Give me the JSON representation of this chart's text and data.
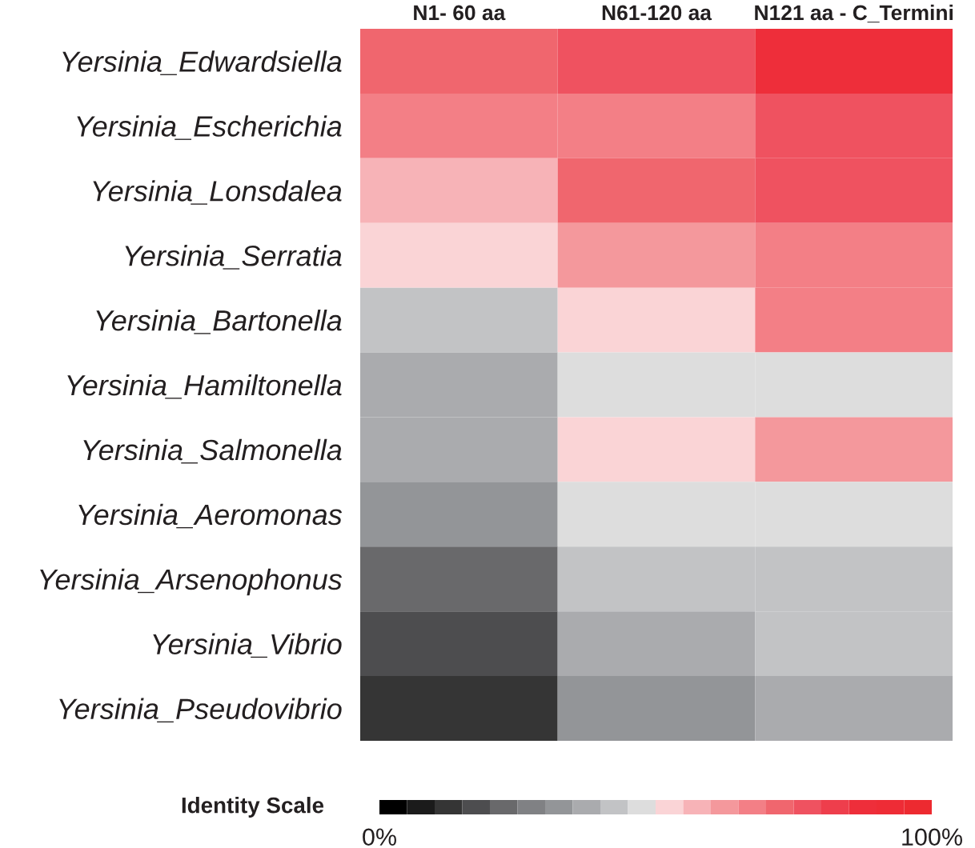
{
  "chart_data": {
    "type": "heatmap",
    "categories": [
      "N1- 60 aa",
      "N61-120 aa",
      "N121 aa - C_Termini"
    ],
    "y_categories": [
      "Yersinia_Edwardsiella",
      "Yersinia_Escherichia",
      "Yersinia_Lonsdalea",
      "Yersinia_Serratia",
      "Yersinia_Bartonella",
      "Yersinia_Hamiltonella",
      "Yersinia_Salmonella",
      "Yersinia_Aeromonas",
      "Yersinia_Arsenophonus",
      "Yersinia_Vibrio",
      "Yersinia_Pseudovibrio"
    ],
    "cells": [
      [
        72.5,
        77.5,
        87.5
      ],
      [
        67.5,
        67.5,
        77.5
      ],
      [
        57.5,
        72.5,
        77.5
      ],
      [
        52.5,
        62.5,
        67.5
      ],
      [
        42.5,
        52.5,
        67.5
      ],
      [
        37.5,
        47.5,
        47.5
      ],
      [
        37.5,
        52.5,
        62.5
      ],
      [
        32.5,
        47.5,
        47.5
      ],
      [
        22.5,
        42.5,
        42.5
      ],
      [
        17.5,
        37.5,
        42.5
      ],
      [
        12.5,
        32.5,
        37.5
      ]
    ],
    "clabel": "Identity Scale",
    "clim": [
      0,
      100
    ],
    "cticks": [
      {
        "value": 0,
        "label": "0%"
      },
      {
        "value": 100,
        "label": "100%"
      }
    ],
    "colors": [
      "#000000",
      "#1b1b1b",
      "#353535",
      "#4d4d4f",
      "#69696b",
      "#808184",
      "#939598",
      "#aaabae",
      "#c2c3c5",
      "#dddddd",
      "#fad4d6",
      "#f7b3b7",
      "#f4989c",
      "#f37f86",
      "#f0666e",
      "#ef5260",
      "#ee3e4c",
      "#ee2e3a",
      "#ee2c36",
      "#ed2a30"
    ]
  }
}
